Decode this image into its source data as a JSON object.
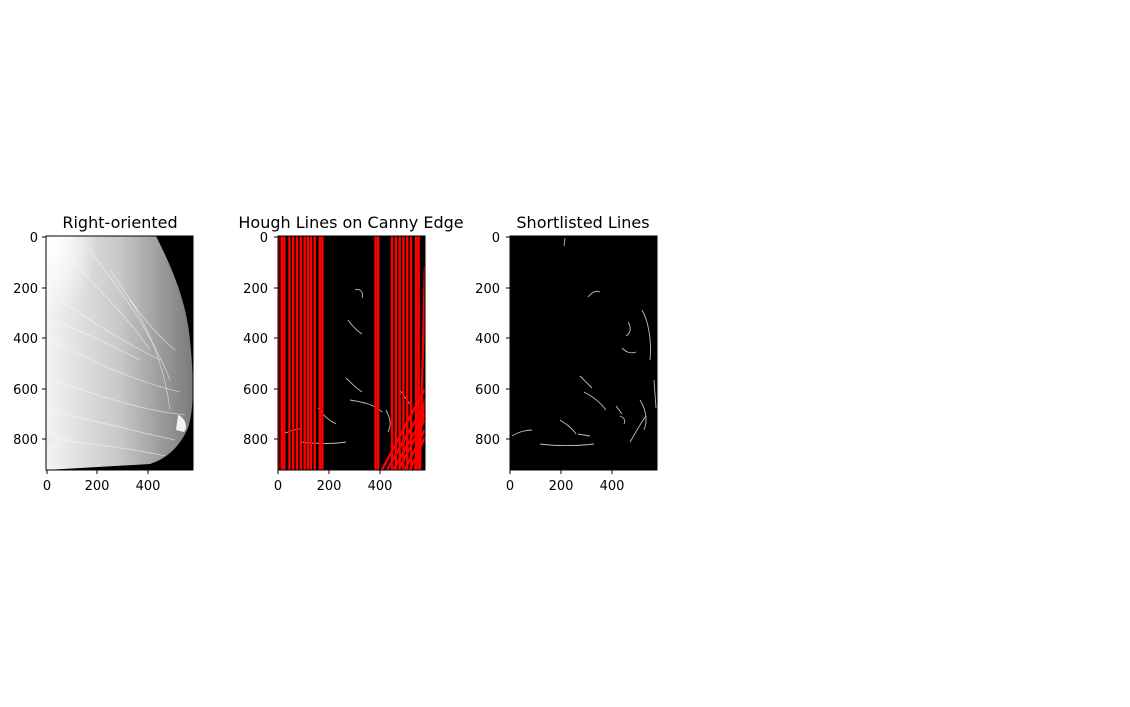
{
  "chart_data": [
    {
      "type": "image",
      "title": "Right-oriented",
      "image_shape": {
        "width": 580,
        "height": 920
      },
      "xticks": [
        0,
        200,
        400
      ],
      "yticks": [
        0,
        200,
        400,
        600,
        800
      ],
      "xlim": [
        0,
        580
      ],
      "ylim": [
        920,
        0
      ],
      "content": "grayscale right-oriented mammogram"
    },
    {
      "type": "image",
      "title": "Hough Lines on Canny Edge",
      "image_shape": {
        "width": 580,
        "height": 920
      },
      "xticks": [
        0,
        200,
        400
      ],
      "yticks": [
        0,
        200,
        400,
        600,
        800
      ],
      "xlim": [
        0,
        580
      ],
      "ylim": [
        920,
        0
      ],
      "line_color": "#ff0000",
      "vertical_line_x": [
        0,
        15,
        25,
        45,
        60,
        75,
        90,
        105,
        118,
        130,
        145,
        165,
        175,
        385,
        395,
        450,
        465,
        480,
        495,
        510,
        525,
        545,
        555
      ],
      "slanted_lines": [
        {
          "from": [
            410,
            920
          ],
          "to": [
            580,
            600
          ]
        },
        {
          "from": [
            430,
            920
          ],
          "to": [
            580,
            660
          ]
        },
        {
          "from": [
            455,
            920
          ],
          "to": [
            580,
            700
          ]
        },
        {
          "from": [
            475,
            920
          ],
          "to": [
            580,
            720
          ]
        },
        {
          "from": [
            500,
            920
          ],
          "to": [
            580,
            760
          ]
        },
        {
          "from": [
            520,
            920
          ],
          "to": [
            580,
            790
          ]
        },
        {
          "from": [
            540,
            920
          ],
          "to": [
            580,
            640
          ]
        },
        {
          "from": [
            560,
            920
          ],
          "to": [
            580,
            120
          ]
        }
      ]
    },
    {
      "type": "image",
      "title": "Shortlisted Lines",
      "image_shape": {
        "width": 580,
        "height": 920
      },
      "xticks": [
        0,
        200,
        400
      ],
      "yticks": [
        0,
        200,
        400,
        600,
        800
      ],
      "xlim": [
        0,
        580
      ],
      "ylim": [
        920,
        0
      ],
      "content": "canny edge map (white edges on black)"
    }
  ],
  "colors": {
    "edge": "#bdbdbd",
    "hough": "#ff0000",
    "background": "#000000"
  }
}
